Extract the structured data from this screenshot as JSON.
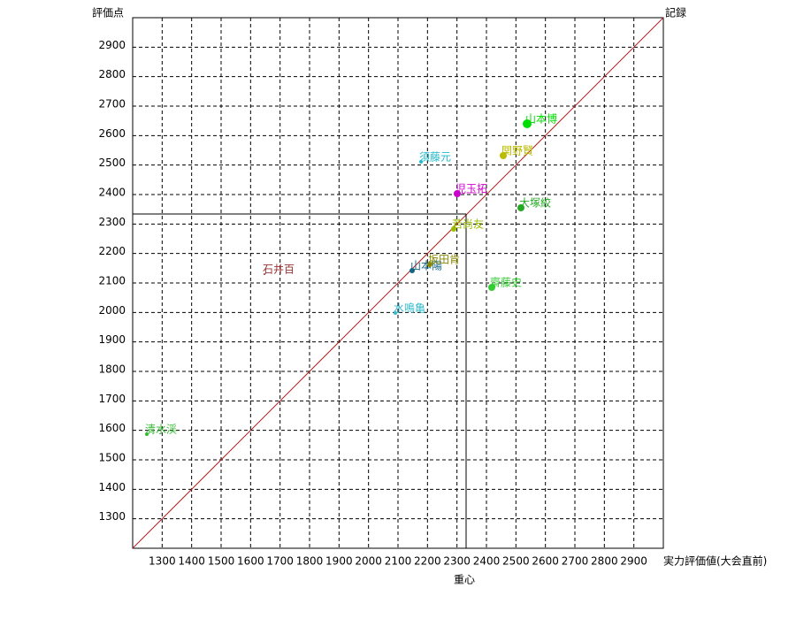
{
  "chart_data": {
    "type": "scatter",
    "x_label": "実力評価値(大会直前)",
    "y_label": "評価点",
    "diagonal_label": "記録",
    "center_label": "重心",
    "center": {
      "x": 2331,
      "y": 2334
    },
    "xlim": [
      1200,
      3000
    ],
    "ylim": [
      1200,
      3000
    ],
    "xticks": [
      1300,
      1400,
      1500,
      1600,
      1700,
      1800,
      1900,
      2000,
      2100,
      2200,
      2300,
      2400,
      2500,
      2600,
      2700,
      2800,
      2900
    ],
    "yticks": [
      1300,
      1400,
      1500,
      1600,
      1700,
      1800,
      1900,
      2000,
      2100,
      2200,
      2300,
      2400,
      2500,
      2600,
      2700,
      2800,
      2900
    ],
    "grid": true,
    "names": [
      "山本博",
      "関野賢",
      "須藤元",
      "児玉拓",
      "大塚絞",
      "若尚友",
      "石井百",
      "山本陽",
      "坂田肯",
      "齋藤史",
      "水鳴亀",
      "清水渓"
    ],
    "x": [
      2538,
      2457,
      2178,
      2301,
      2517,
      2289,
      1647,
      2148,
      2208,
      2418,
      2091,
      1248
    ],
    "values": [
      2640,
      2532,
      2511,
      2403,
      2355,
      2283,
      2130,
      2142,
      2163,
      2085,
      1998,
      1587
    ],
    "sizes": [
      5,
      4,
      2,
      4,
      4,
      3,
      1,
      3,
      3,
      4,
      2,
      2
    ],
    "colors": [
      "#00dd00",
      "#bbbb00",
      "#22bbcc",
      "#cc00cc",
      "#22aa22",
      "#99bb00",
      "#993333",
      "#116688",
      "#888800",
      "#33cc33",
      "#33bbcc",
      "#33bb33"
    ]
  }
}
